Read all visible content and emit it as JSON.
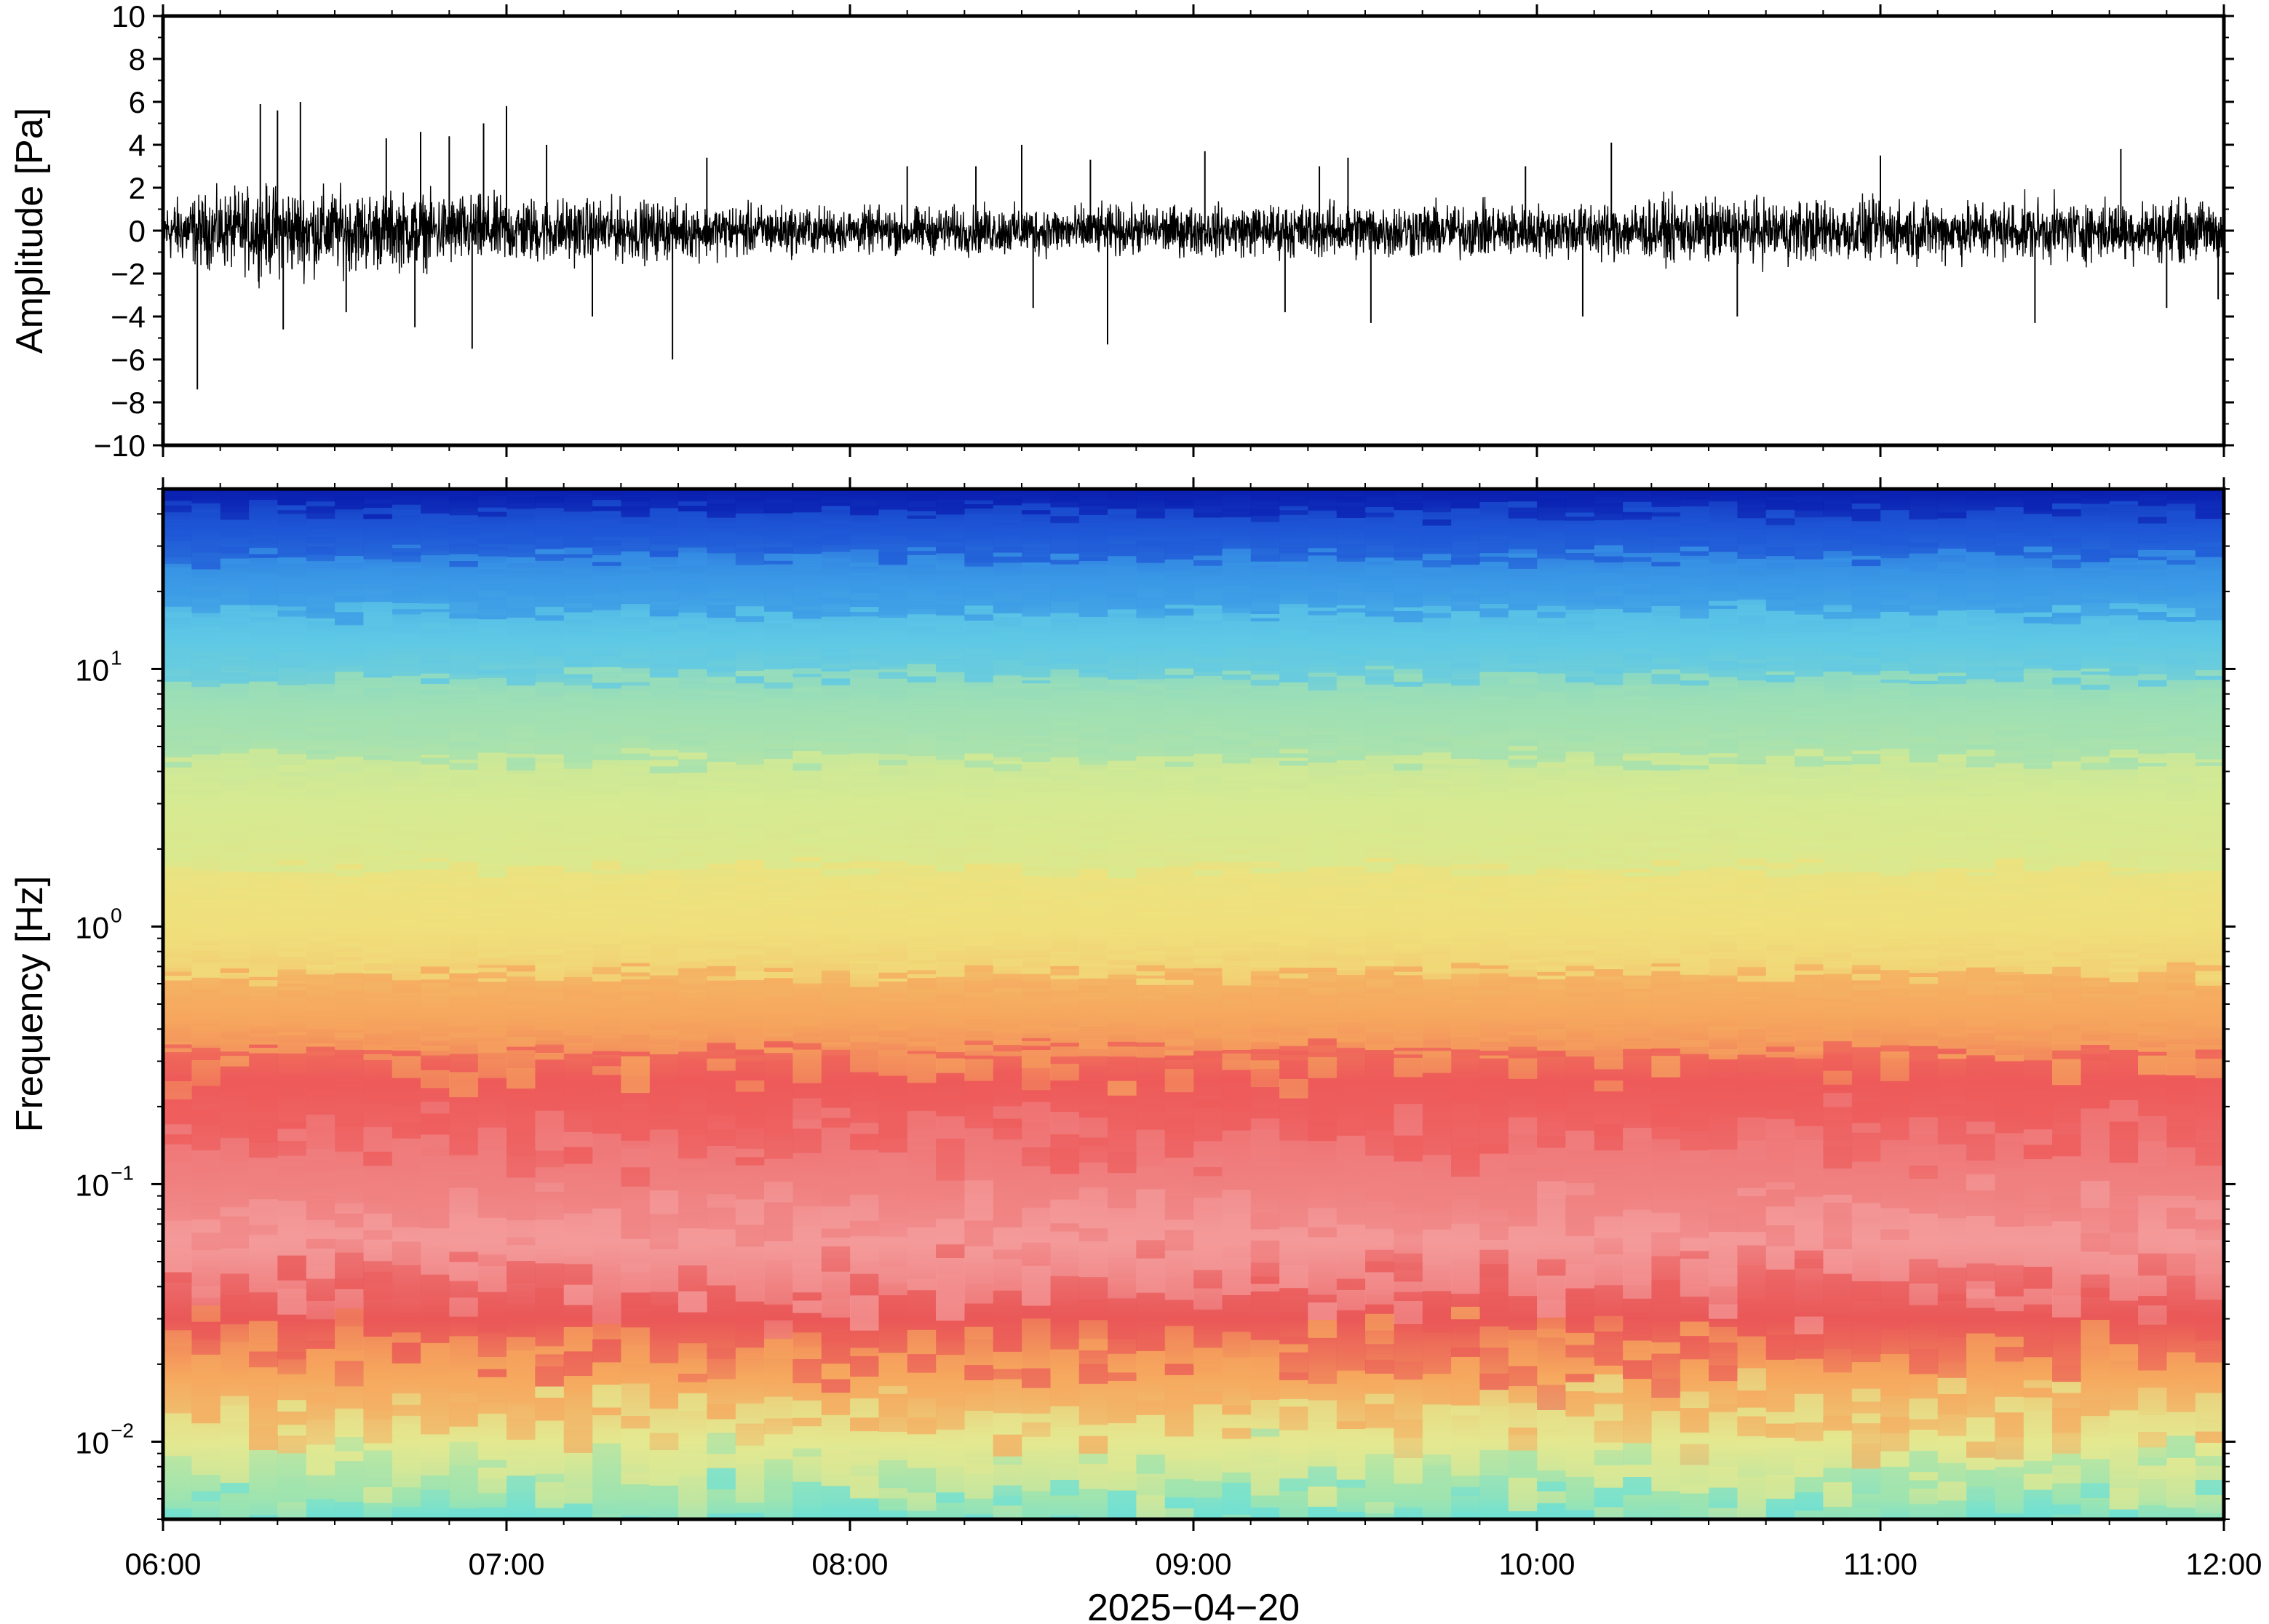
{
  "chart_data": [
    {
      "type": "line",
      "panel": "waveform",
      "ylabel": "Amplitude [Pa]",
      "ylim": [
        -10,
        10
      ],
      "yticks": [
        -10,
        -8,
        -6,
        -4,
        -2,
        0,
        2,
        4,
        6,
        8,
        10
      ],
      "ytick_labels": [
        "−10",
        "−8",
        "−6",
        "−4",
        "−2",
        "0",
        "2",
        "4",
        "6",
        "8",
        "10"
      ],
      "xlim": [
        "06:00",
        "12:00"
      ],
      "grid": false,
      "color": "#000000",
      "noise_band": [
        {
          "x": "06:00",
          "envelope": 1.6
        },
        {
          "x": "06:20",
          "envelope": 2.4
        },
        {
          "x": "06:40",
          "envelope": 2.0
        },
        {
          "x": "07:00",
          "envelope": 1.8
        },
        {
          "x": "07:30",
          "envelope": 1.5
        },
        {
          "x": "08:00",
          "envelope": 1.2
        },
        {
          "x": "08:30",
          "envelope": 1.3
        },
        {
          "x": "09:00",
          "envelope": 1.3
        },
        {
          "x": "09:30",
          "envelope": 1.5
        },
        {
          "x": "10:00",
          "envelope": 1.4
        },
        {
          "x": "10:30",
          "envelope": 1.7
        },
        {
          "x": "11:00",
          "envelope": 1.6
        },
        {
          "x": "11:30",
          "envelope": 1.6
        },
        {
          "x": "12:00",
          "envelope": 1.6
        }
      ],
      "spikes": [
        {
          "x": "06:06",
          "y": -7.4
        },
        {
          "x": "06:17",
          "y": 5.9
        },
        {
          "x": "06:20",
          "y": 5.6
        },
        {
          "x": "06:21",
          "y": -4.6
        },
        {
          "x": "06:24",
          "y": 6.0
        },
        {
          "x": "06:32",
          "y": -3.8
        },
        {
          "x": "06:39",
          "y": 4.3
        },
        {
          "x": "06:44",
          "y": -4.5
        },
        {
          "x": "06:45",
          "y": 4.6
        },
        {
          "x": "06:50",
          "y": 4.4
        },
        {
          "x": "06:54",
          "y": -5.5
        },
        {
          "x": "06:56",
          "y": 5.0
        },
        {
          "x": "07:00",
          "y": 5.8
        },
        {
          "x": "07:07",
          "y": 4.0
        },
        {
          "x": "07:15",
          "y": -4.0
        },
        {
          "x": "07:29",
          "y": -6.0
        },
        {
          "x": "07:35",
          "y": 3.4
        },
        {
          "x": "08:10",
          "y": 3.0
        },
        {
          "x": "08:22",
          "y": 3.0
        },
        {
          "x": "08:30",
          "y": 4.0
        },
        {
          "x": "08:32",
          "y": -3.6
        },
        {
          "x": "08:42",
          "y": 3.3
        },
        {
          "x": "08:45",
          "y": -5.3
        },
        {
          "x": "09:02",
          "y": 3.7
        },
        {
          "x": "09:16",
          "y": -3.8
        },
        {
          "x": "09:22",
          "y": 3.0
        },
        {
          "x": "09:27",
          "y": 3.4
        },
        {
          "x": "09:31",
          "y": -4.3
        },
        {
          "x": "09:58",
          "y": 3.0
        },
        {
          "x": "10:08",
          "y": -4.0
        },
        {
          "x": "10:13",
          "y": 4.1
        },
        {
          "x": "10:35",
          "y": -4.0
        },
        {
          "x": "11:00",
          "y": 3.5
        },
        {
          "x": "11:27",
          "y": -4.3
        },
        {
          "x": "11:42",
          "y": 3.8
        },
        {
          "x": "11:50",
          "y": -3.6
        },
        {
          "x": "11:59",
          "y": -3.2
        }
      ]
    },
    {
      "type": "heatmap",
      "panel": "spectrogram",
      "ylabel": "Frequency [Hz]",
      "yscale": "log",
      "ylim": [
        0.005,
        50
      ],
      "yticks": [
        0.01,
        0.1,
        1,
        10
      ],
      "ytick_labels": [
        {
          "base": "10",
          "exp": "−2"
        },
        {
          "base": "10",
          "exp": "−1"
        },
        {
          "base": "10",
          "exp": "0"
        },
        {
          "base": "10",
          "exp": "1"
        }
      ],
      "x": [
        "06:00",
        "07:00",
        "08:00",
        "09:00",
        "10:00",
        "11:00",
        "12:00"
      ],
      "xtick_labels": [
        "06:00",
        "07:00",
        "08:00",
        "09:00",
        "10:00",
        "11:00",
        "12:00"
      ],
      "xlabel": "2025−04−20",
      "xlim": [
        "06:00",
        "12:00"
      ],
      "colormap": "rainbow",
      "grid": false,
      "frequency_profile": [
        {
          "f": 50,
          "color": "#0a1fb0"
        },
        {
          "f": 35,
          "color": "#1e56d6"
        },
        {
          "f": 22,
          "color": "#3a98e6"
        },
        {
          "f": 13,
          "color": "#5ec8e6"
        },
        {
          "f": 7,
          "color": "#9fe0b4"
        },
        {
          "f": 3,
          "color": "#d6ea92"
        },
        {
          "f": 1,
          "color": "#f0e07c"
        },
        {
          "f": 0.45,
          "color": "#f6a85e"
        },
        {
          "f": 0.25,
          "color": "#ee5a5a"
        },
        {
          "f": 0.1,
          "color": "#f08080"
        },
        {
          "f": 0.06,
          "color": "#f49a9a"
        },
        {
          "f": 0.03,
          "color": "#ea5858"
        },
        {
          "f": 0.018,
          "color": "#f6a85e"
        },
        {
          "f": 0.01,
          "color": "#e4e890"
        },
        {
          "f": 0.006,
          "color": "#9ee4b0"
        },
        {
          "f": 0.005,
          "color": "#6ee0d6"
        }
      ]
    }
  ]
}
